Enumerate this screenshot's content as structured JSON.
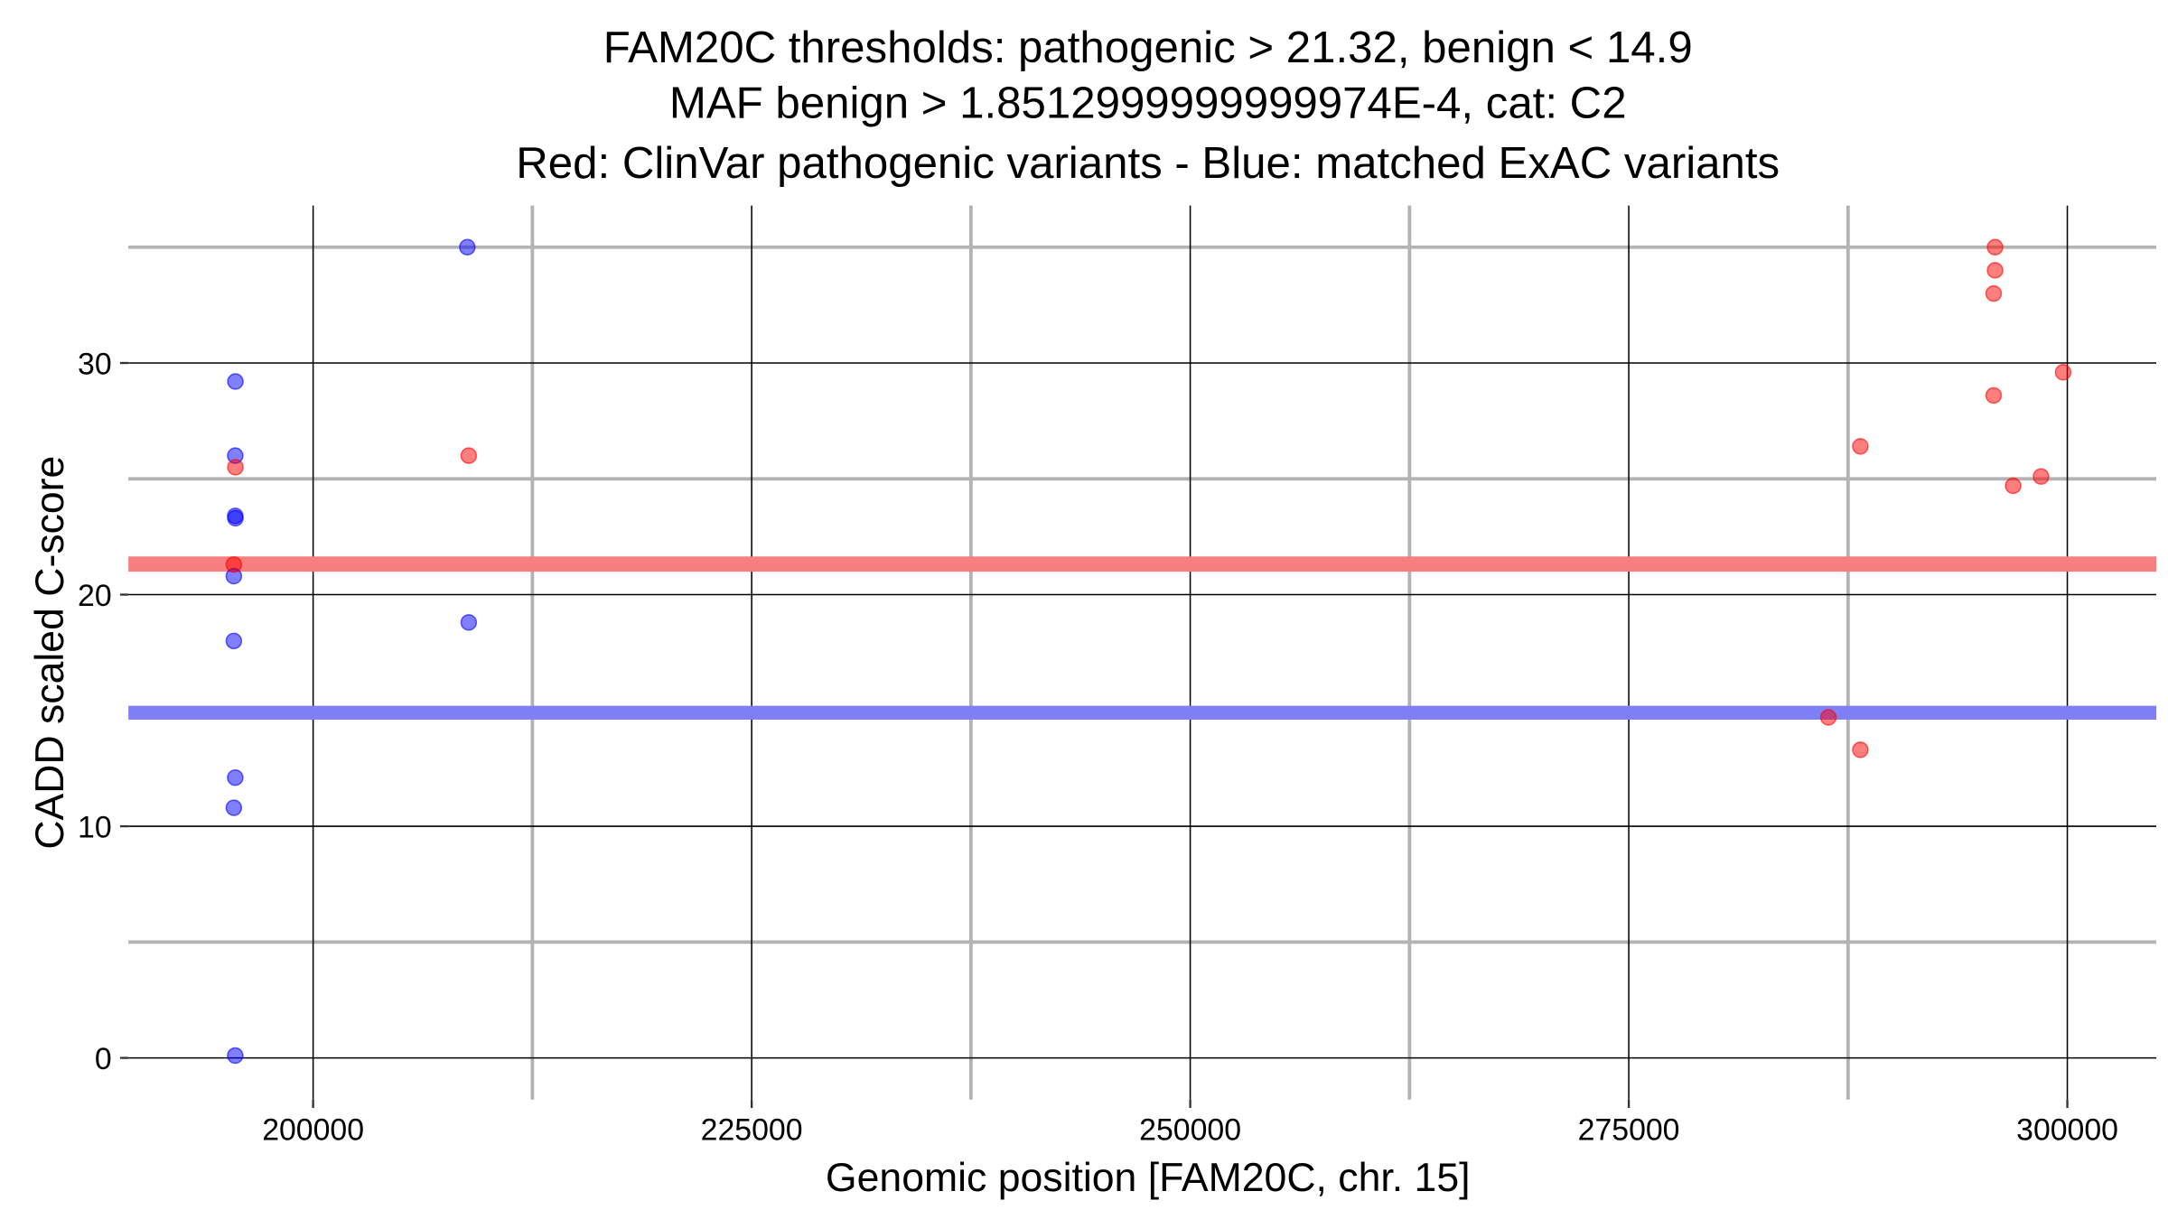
{
  "chart_data": {
    "type": "scatter",
    "title": [
      "FAM20C thresholds: pathogenic > 21.32, benign < 14.9",
      "MAF benign > 1.8512999999999974E-4, cat: C2",
      "Red: ClinVar pathogenic variants - Blue: matched ExAC variants"
    ],
    "xlabel": "Genomic position [FAM20C, chr. 15]",
    "ylabel": "CADD scaled C-score",
    "xlim": [
      189470,
      305070
    ],
    "ylim": [
      -1.8,
      36.8
    ],
    "xticks": [
      200000,
      225000,
      250000,
      275000,
      300000
    ],
    "xtick_labels": [
      "200000",
      "225000",
      "250000",
      "275000",
      "300000"
    ],
    "yticks": [
      0,
      10,
      20,
      30
    ],
    "ytick_labels": [
      "0",
      "10",
      "20",
      "30"
    ],
    "x_minor": [
      212500,
      237500,
      262500,
      287500
    ],
    "y_minor": [
      5,
      15,
      25,
      35
    ],
    "grid": true,
    "thresholds": [
      {
        "name": "pathogenic",
        "value": 21.32,
        "color": "#f87f7f"
      },
      {
        "name": "benign",
        "value": 14.9,
        "color": "#7f7ff8"
      }
    ],
    "series": [
      {
        "name": "ExAC",
        "color": "#0000ff",
        "points": [
          [
            195570,
            29.2
          ],
          [
            195560,
            26.0
          ],
          [
            195560,
            23.4
          ],
          [
            195570,
            23.3
          ],
          [
            195480,
            20.8
          ],
          [
            195480,
            18.0
          ],
          [
            195560,
            12.1
          ],
          [
            195480,
            10.8
          ],
          [
            195560,
            0.1
          ],
          [
            208790,
            35.0
          ],
          [
            208870,
            18.8
          ]
        ]
      },
      {
        "name": "ClinVar",
        "color": "#ff0000",
        "points": [
          [
            195570,
            25.5
          ],
          [
            195480,
            21.3
          ],
          [
            208870,
            26.0
          ],
          [
            286380,
            14.7
          ],
          [
            288200,
            13.3
          ],
          [
            288200,
            26.4
          ],
          [
            295880,
            35.0
          ],
          [
            295880,
            34.0
          ],
          [
            295800,
            33.0
          ],
          [
            295800,
            28.6
          ],
          [
            296910,
            24.7
          ],
          [
            298500,
            25.1
          ],
          [
            299760,
            29.6
          ]
        ]
      }
    ]
  }
}
